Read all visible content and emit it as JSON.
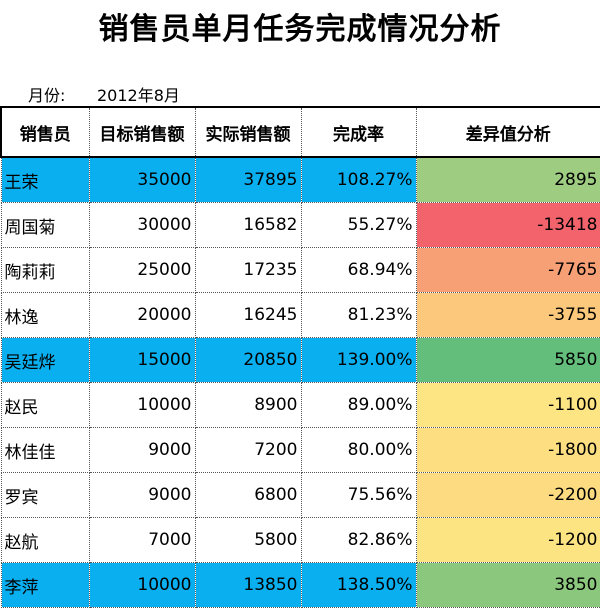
{
  "title": "销售员单月任务完成情况分析",
  "month": {
    "label": "月份:",
    "value": "2012年8月"
  },
  "headers": [
    "销售员",
    "目标销售额",
    "实际销售额",
    "完成率",
    "差异值分析"
  ],
  "colors": {
    "highlight_row": "#0aaff0"
  },
  "rows": [
    {
      "name": "王荣",
      "target": "35000",
      "actual": "37895",
      "rate": "108.27%",
      "diff": "2895",
      "highlight": true,
      "diff_color": "#9ecc80"
    },
    {
      "name": "周国菊",
      "target": "30000",
      "actual": "16582",
      "rate": "55.27%",
      "diff": "-13418",
      "highlight": false,
      "diff_color": "#f2636b"
    },
    {
      "name": "陶莉莉",
      "target": "25000",
      "actual": "17235",
      "rate": "68.94%",
      "diff": "-7765",
      "highlight": false,
      "diff_color": "#f7a076"
    },
    {
      "name": "林逸",
      "target": "20000",
      "actual": "16245",
      "rate": "81.23%",
      "diff": "-3755",
      "highlight": false,
      "diff_color": "#fcc97c"
    },
    {
      "name": "吴廷烨",
      "target": "15000",
      "actual": "20850",
      "rate": "139.00%",
      "diff": "5850",
      "highlight": true,
      "diff_color": "#63be7b"
    },
    {
      "name": "赵民",
      "target": "10000",
      "actual": "8900",
      "rate": "89.00%",
      "diff": "-1100",
      "highlight": false,
      "diff_color": "#fde583"
    },
    {
      "name": "林佳佳",
      "target": "9000",
      "actual": "7200",
      "rate": "80.00%",
      "diff": "-1800",
      "highlight": false,
      "diff_color": "#fddf82"
    },
    {
      "name": "罗宾",
      "target": "9000",
      "actual": "6800",
      "rate": "75.56%",
      "diff": "-2200",
      "highlight": false,
      "diff_color": "#fddc81"
    },
    {
      "name": "赵航",
      "target": "7000",
      "actual": "5800",
      "rate": "82.86%",
      "diff": "-1200",
      "highlight": false,
      "diff_color": "#fde483"
    },
    {
      "name": "李萍",
      "target": "10000",
      "actual": "13850",
      "rate": "138.50%",
      "diff": "3850",
      "highlight": true,
      "diff_color": "#8cc77e"
    }
  ]
}
